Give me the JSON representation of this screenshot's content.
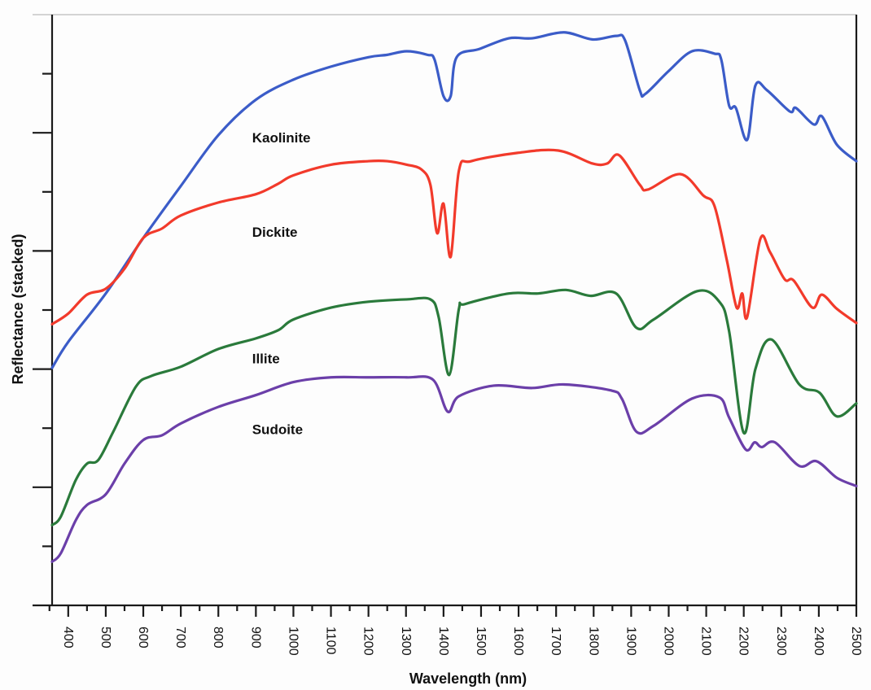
{
  "chart_data": {
    "type": "line",
    "title": "",
    "xlabel": "Wavelength (nm)",
    "ylabel": "Reflectance (stacked)",
    "xlim": [
      357,
      2500
    ],
    "ylim": [
      0,
      5
    ],
    "x_ticks": [
      400,
      500,
      600,
      700,
      800,
      900,
      1000,
      1100,
      1200,
      1300,
      1400,
      1500,
      1600,
      1700,
      1800,
      1900,
      2000,
      2100,
      2200,
      2300,
      2400,
      2500
    ],
    "x_tick_labels": [
      "400",
      "500",
      "600",
      "700",
      "800",
      "900",
      "1000",
      "1100",
      "1200",
      "1300",
      "1400",
      "1500",
      "1600",
      "1700",
      "1800",
      "1900",
      "2000",
      "2100",
      "2200",
      "2300",
      "2400",
      "2500"
    ],
    "x_minor_ticks": [
      350,
      450,
      550,
      650,
      750,
      850,
      950,
      1050,
      1150,
      1250,
      1350,
      1450,
      1550,
      1650,
      1750,
      1850,
      1950,
      2050,
      2150,
      2250,
      2350,
      2450
    ],
    "y_major_ticks": [
      1,
      2,
      3,
      4
    ],
    "y_minor_ticks": [
      0.5,
      1.5,
      2.5,
      3.5,
      4.5
    ],
    "y_tick_labels_shown": false,
    "grid": false,
    "legend": "none (inline labels)",
    "series": [
      {
        "name": "Kaolinite",
        "color": "#3b5cc8",
        "x": [
          357,
          400,
          500,
          600,
          700,
          800,
          900,
          1000,
          1100,
          1200,
          1250,
          1302,
          1357,
          1376,
          1400,
          1419,
          1435,
          1496,
          1574,
          1636,
          1721,
          1797,
          1860,
          1884,
          1923,
          1938,
          1999,
          2062,
          2122,
          2140,
          2161,
          2179,
          2209,
          2231,
          2262,
          2323,
          2339,
          2387,
          2408,
          2448,
          2500
        ],
        "y": [
          2.01,
          2.23,
          2.64,
          3.11,
          3.55,
          3.98,
          4.28,
          4.45,
          4.56,
          4.64,
          4.66,
          4.69,
          4.66,
          4.62,
          4.31,
          4.31,
          4.64,
          4.71,
          4.8,
          4.8,
          4.85,
          4.79,
          4.82,
          4.78,
          4.36,
          4.33,
          4.52,
          4.69,
          4.67,
          4.62,
          4.23,
          4.21,
          3.94,
          4.4,
          4.36,
          4.18,
          4.21,
          4.07,
          4.14,
          3.9,
          3.76
        ]
      },
      {
        "name": "Dickite",
        "color": "#f23a2b",
        "x": [
          357,
          400,
          450,
          500,
          550,
          600,
          650,
          700,
          800,
          900,
          960,
          1000,
          1100,
          1200,
          1250,
          1302,
          1341,
          1365,
          1383,
          1400,
          1419,
          1441,
          1474,
          1597,
          1706,
          1797,
          1836,
          1868,
          1923,
          1945,
          2031,
          2092,
          2122,
          2155,
          2181,
          2196,
          2209,
          2244,
          2270,
          2309,
          2333,
          2383,
          2408,
          2448,
          2500
        ],
        "y": [
          2.38,
          2.47,
          2.63,
          2.68,
          2.85,
          3.11,
          3.19,
          3.3,
          3.41,
          3.48,
          3.57,
          3.64,
          3.73,
          3.76,
          3.76,
          3.73,
          3.69,
          3.56,
          3.15,
          3.4,
          2.95,
          3.68,
          3.76,
          3.83,
          3.85,
          3.74,
          3.74,
          3.81,
          3.56,
          3.52,
          3.65,
          3.47,
          3.38,
          2.92,
          2.52,
          2.64,
          2.44,
          3.1,
          2.99,
          2.76,
          2.75,
          2.52,
          2.63,
          2.51,
          2.39
        ]
      },
      {
        "name": "Illite",
        "color": "#2a7a3b",
        "x": [
          357,
          380,
          420,
          450,
          480,
          520,
          580,
          620,
          700,
          800,
          900,
          960,
          1000,
          1100,
          1200,
          1302,
          1365,
          1387,
          1415,
          1441,
          1457,
          1574,
          1652,
          1726,
          1791,
          1860,
          1914,
          1960,
          2076,
          2135,
          2161,
          2200,
          2231,
          2274,
          2348,
          2402,
          2448,
          2500
        ],
        "y": [
          0.68,
          0.75,
          1.06,
          1.2,
          1.23,
          1.47,
          1.85,
          1.94,
          2.02,
          2.17,
          2.26,
          2.33,
          2.42,
          2.52,
          2.57,
          2.59,
          2.59,
          2.44,
          1.95,
          2.51,
          2.55,
          2.64,
          2.64,
          2.67,
          2.62,
          2.64,
          2.35,
          2.42,
          2.66,
          2.57,
          2.32,
          1.46,
          2.0,
          2.25,
          1.87,
          1.8,
          1.6,
          1.71
        ]
      },
      {
        "name": "Sudoite",
        "color": "#6b3fa9",
        "x": [
          357,
          380,
          420,
          450,
          500,
          550,
          600,
          650,
          700,
          800,
          900,
          1000,
          1100,
          1200,
          1302,
          1372,
          1411,
          1441,
          1534,
          1636,
          1721,
          1845,
          1875,
          1914,
          1960,
          2062,
          2135,
          2161,
          2205,
          2229,
          2248,
          2283,
          2348,
          2394,
          2448,
          2500
        ],
        "y": [
          0.37,
          0.44,
          0.72,
          0.85,
          0.94,
          1.2,
          1.4,
          1.44,
          1.54,
          1.68,
          1.78,
          1.89,
          1.93,
          1.93,
          1.93,
          1.91,
          1.64,
          1.77,
          1.86,
          1.84,
          1.87,
          1.82,
          1.75,
          1.47,
          1.52,
          1.75,
          1.76,
          1.59,
          1.32,
          1.38,
          1.34,
          1.38,
          1.18,
          1.22,
          1.08,
          1.01
        ]
      }
    ],
    "annotations": [
      {
        "text": "Kaolinite",
        "x": 890,
        "y": 3.96
      },
      {
        "text": "Dickite",
        "x": 890,
        "y": 3.16
      },
      {
        "text": "Illite",
        "x": 890,
        "y": 2.09
      },
      {
        "text": "Sudoite",
        "x": 890,
        "y": 1.49
      }
    ]
  }
}
